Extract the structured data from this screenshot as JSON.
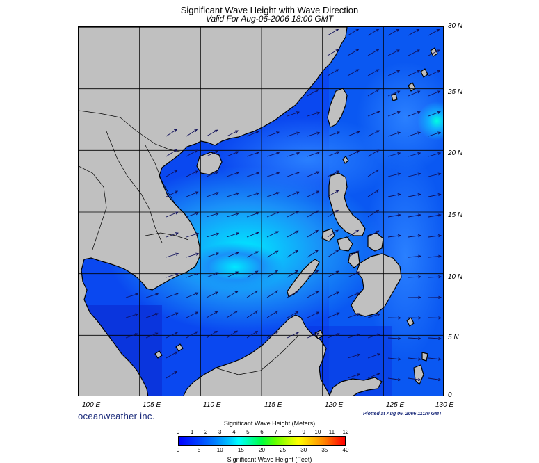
{
  "header": {
    "title": "Significant Wave Height with Wave Direction",
    "subtitle": "Valid For Aug-06-2006 18:00 GMT"
  },
  "map": {
    "latitude_labels": [
      "30 N",
      "25 N",
      "20 N",
      "15 N",
      "10 N",
      "5 N",
      "0"
    ],
    "longitude_labels": [
      "100 E",
      "105 E",
      "110 E",
      "115 E",
      "120 E",
      "125 E",
      "130 E"
    ],
    "extent": {
      "lon_min": 100,
      "lon_max": 130,
      "lat_min": 0,
      "lat_max": 30
    },
    "colors": {
      "land": "#c0c0c0",
      "coast": "#000000",
      "sea_low": "#0a3cf0",
      "sea_mid": "#1a78f5",
      "sea_high": "#00e0ff",
      "arrow": "#10105a"
    }
  },
  "footer": {
    "brand": "oceanweather inc.",
    "plotted": "Plotted at Aug 06, 2006 11:30 GMT"
  },
  "colorbar": {
    "title_top": "Significant Wave Height (Meters)",
    "title_bottom": "Significant Wave Height (Feet)",
    "meters_ticks": [
      "0",
      "1",
      "2",
      "3",
      "4",
      "5",
      "6",
      "7",
      "8",
      "9",
      "10",
      "11",
      "12"
    ],
    "feet_ticks": [
      "0",
      "5",
      "10",
      "15",
      "20",
      "25",
      "30",
      "35",
      "40"
    ]
  }
}
